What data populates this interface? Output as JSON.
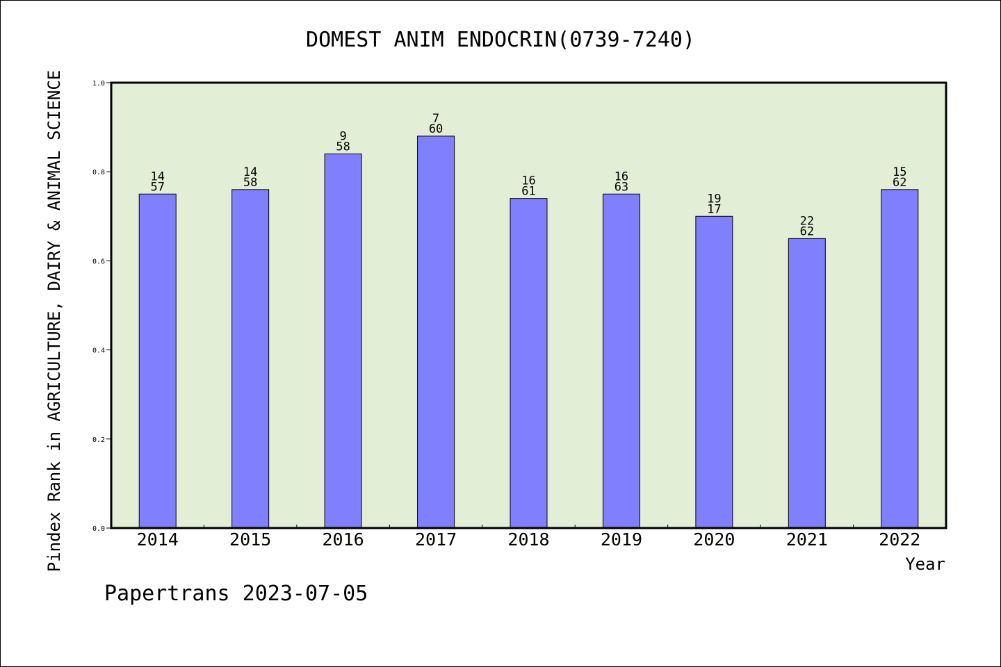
{
  "chart_data": {
    "type": "bar",
    "title": "DOMEST ANIM ENDOCRIN(0739-7240)",
    "xlabel": "Year",
    "ylabel": "Pindex Rank in AGRICULTURE, DAIRY & ANIMAL SCIENCE",
    "categories": [
      "2014",
      "2015",
      "2016",
      "2017",
      "2018",
      "2019",
      "2020",
      "2021",
      "2022"
    ],
    "values": [
      0.75,
      0.76,
      0.84,
      0.88,
      0.74,
      0.75,
      0.7,
      0.65,
      0.76
    ],
    "label_top": [
      "14",
      "14",
      "9",
      "7",
      "16",
      "16",
      "19",
      "22",
      "15"
    ],
    "label_bottom": [
      "57",
      "58",
      "58",
      "60",
      "61",
      "63",
      "17",
      "62",
      "62"
    ],
    "ylim": [
      0,
      1.0
    ],
    "yticks": [
      "0.0",
      "0.2",
      "0.4",
      "0.6",
      "0.8",
      "1.0"
    ],
    "grid": false,
    "legend": "none",
    "colors": {
      "plot_bg": "#e2efd6",
      "bar": "#8080ff",
      "axis": "#000000"
    }
  },
  "footer": {
    "credit": "Papertrans 2023-07-05"
  }
}
